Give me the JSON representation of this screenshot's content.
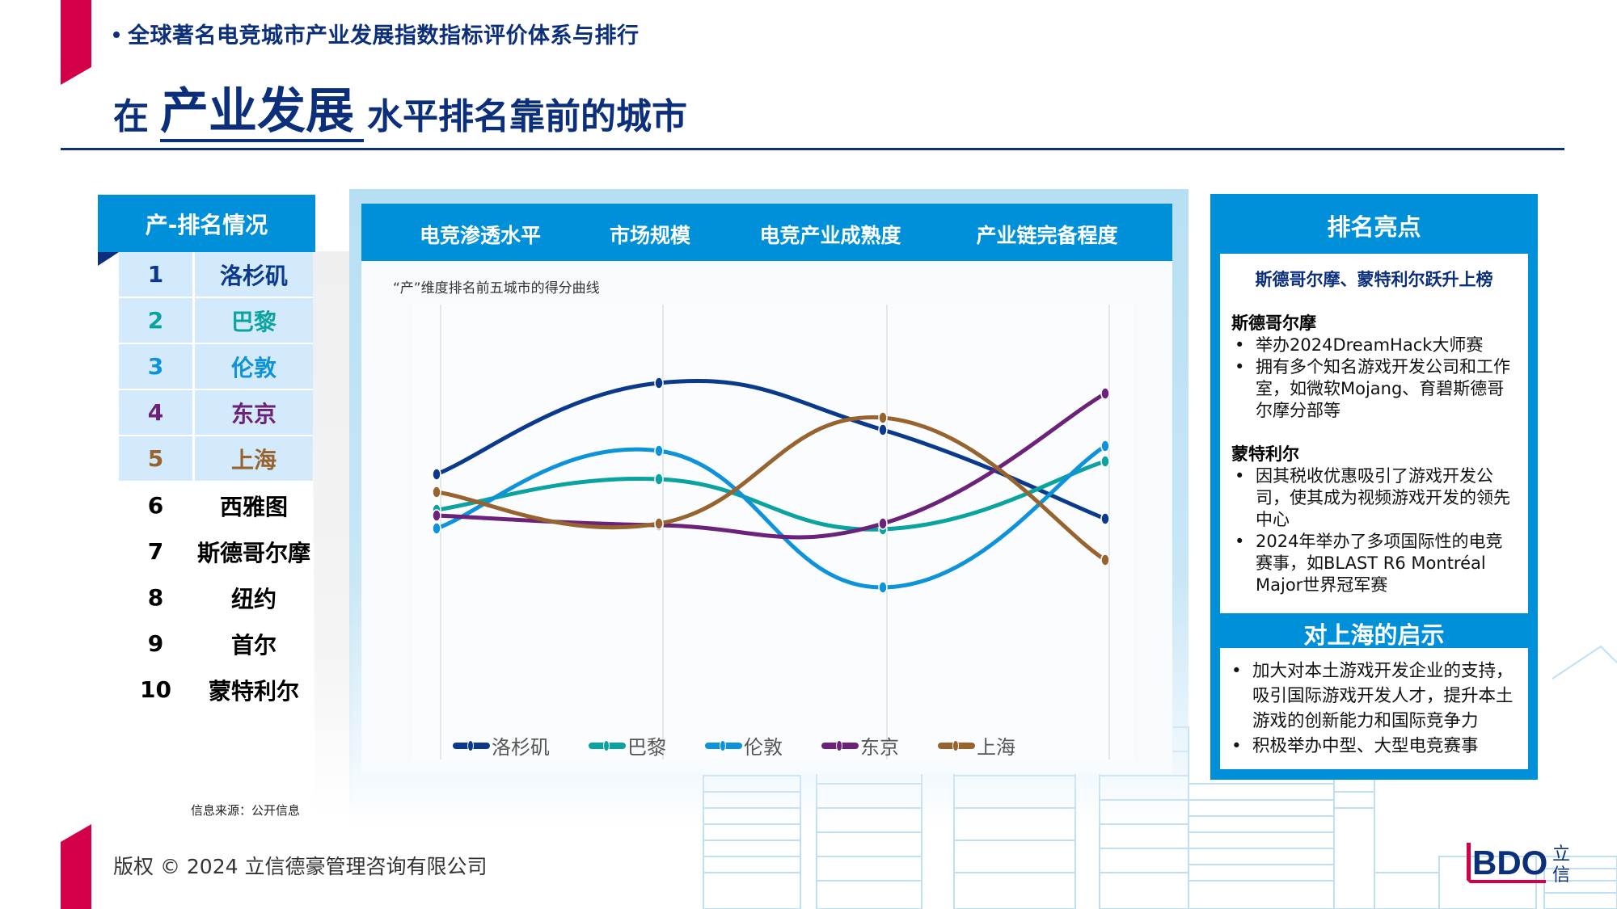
{
  "header": {
    "subtitle": "全球著名电竞城市产业发展指数指标评价体系与排行",
    "title_prefix": "在",
    "title_highlight": "产业发展",
    "title_suffix": "水平排名靠前的城市"
  },
  "ranking": {
    "title": "产-排名情况",
    "items": [
      {
        "rank": "1",
        "city": "洛杉矶",
        "color": "#0B3A8C"
      },
      {
        "rank": "2",
        "city": "巴黎",
        "color": "#0AA3A0"
      },
      {
        "rank": "3",
        "city": "伦敦",
        "color": "#0E93D8"
      },
      {
        "rank": "4",
        "city": "东京",
        "color": "#6B2278"
      },
      {
        "rank": "5",
        "city": "上海",
        "color": "#97632E"
      },
      {
        "rank": "6",
        "city": "西雅图",
        "color": "#000000"
      },
      {
        "rank": "7",
        "city": "斯德哥尔摩",
        "color": "#000000"
      },
      {
        "rank": "8",
        "city": "纽约",
        "color": "#000000"
      },
      {
        "rank": "9",
        "city": "首尔",
        "color": "#000000"
      },
      {
        "rank": "10",
        "city": "蒙特利尔",
        "color": "#000000"
      }
    ],
    "source_note": "信息来源：公开信息"
  },
  "chart": {
    "tabs": [
      "电竞渗透水平",
      "市场规模",
      "电竞产业成熟度",
      "产业链完备程度"
    ],
    "caption": "“产”维度排名前五城市的得分曲线"
  },
  "chart_data": {
    "type": "line",
    "title": "“产”维度排名前五城市的得分曲线",
    "categories": [
      "电竞渗透水平",
      "市场规模",
      "电竞产业成熟度",
      "产业链完备程度"
    ],
    "xlabel": "",
    "ylabel": "",
    "ylim": [
      0,
      100
    ],
    "grid": "vertical",
    "legend_position": "bottom",
    "smooth": true,
    "note": "No numeric axis shown; values are relative scores estimated from curve heights (0-100 normalized).",
    "series": [
      {
        "name": "洛杉矶",
        "color": "#0B3A8C",
        "values": [
          58.6,
          81.2,
          69.6,
          47.6
        ]
      },
      {
        "name": "巴黎",
        "color": "#0AA3A0",
        "values": [
          49.8,
          57.4,
          45.0,
          61.8
        ]
      },
      {
        "name": "伦敦",
        "color": "#0E93D8",
        "values": [
          45.2,
          64.4,
          30.6,
          65.6
        ]
      },
      {
        "name": "东京",
        "color": "#6B2278",
        "values": [
          48.4,
          46.0,
          46.4,
          78.6
        ]
      },
      {
        "name": "上海",
        "color": "#97632E",
        "values": [
          54.2,
          46.4,
          72.6,
          37.4
        ]
      }
    ]
  },
  "highlights": {
    "title": "排名亮点",
    "subheading": "斯德哥尔摩、蒙特利尔跃升上榜",
    "cities": [
      {
        "name": "斯德哥尔摩",
        "points": [
          "举办2024DreamHack大师赛",
          "拥有多个知名游戏开发公司和工作室，如微软Mojang、育碧斯德哥尔摩分部等"
        ]
      },
      {
        "name": "蒙特利尔",
        "points": [
          "因其税收优惠吸引了游戏开发公司，使其成为视频游戏开发的领先中心",
          "2024年举办了多项国际性的电竞赛事，如BLAST R6 Montréal Major世界冠军赛"
        ]
      }
    ]
  },
  "implications": {
    "title": "对上海的启示",
    "points": [
      "加大对本土游戏开发企业的支持，吸引国际游戏开发人才，提升本土游戏的创新能力和国际竞争力",
      "积极举办中型、大型电竞赛事"
    ]
  },
  "footer": {
    "copyright": "版权 © 2024 立信德豪管理咨询有限公司",
    "logo_text": "BDO",
    "logo_cn": "立信"
  },
  "colors": {
    "brand_navy": "#0B2F7A",
    "brand_blue": "#0090D9",
    "brand_red": "#D5004A",
    "panel_light": "#B7DFF4",
    "row_light": "#D2EAFB"
  }
}
